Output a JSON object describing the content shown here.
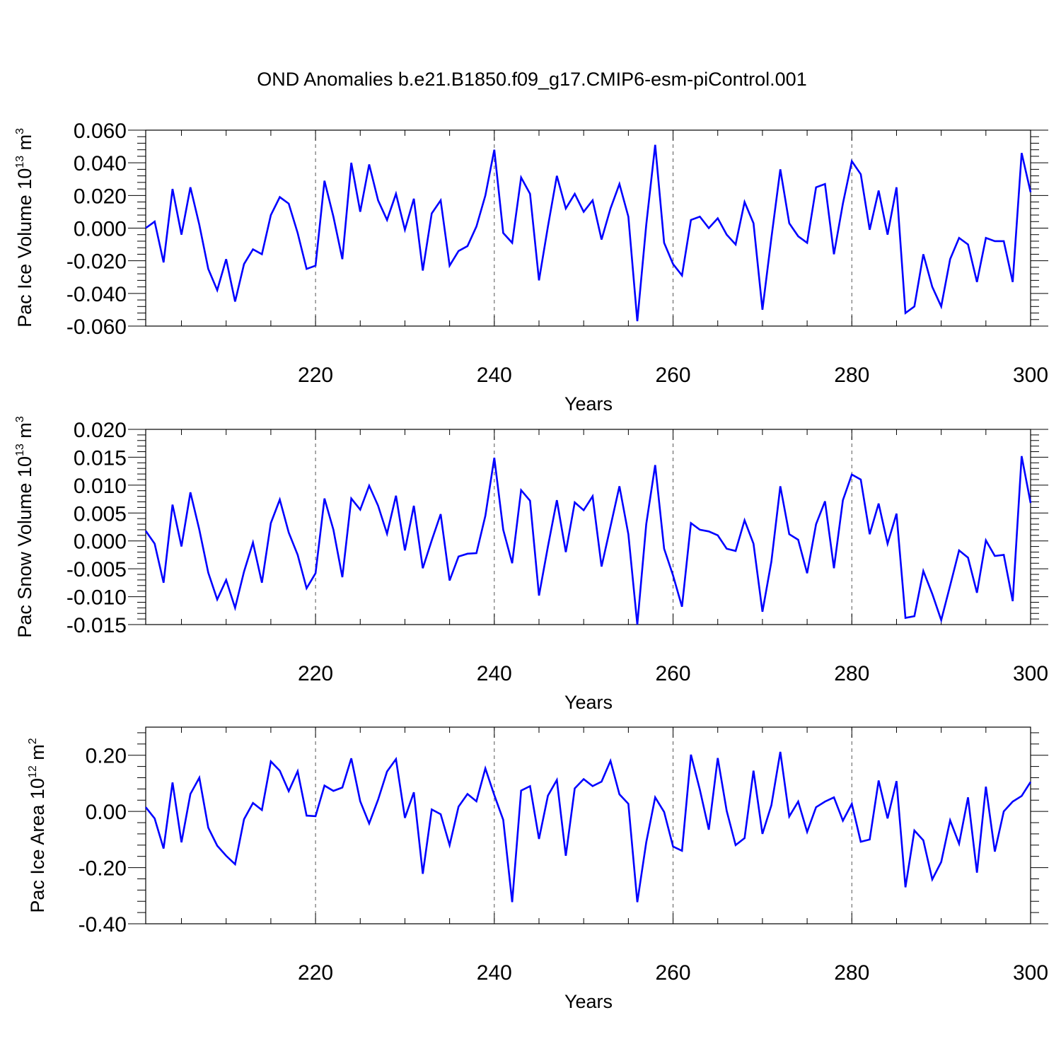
{
  "title": "OND Anomalies b.e21.B1850.f09_g17.CMIP6-esm-piControl.001",
  "colors": {
    "line": "#0000ff",
    "axes": "#000000",
    "grid": "#555555"
  },
  "chart_data": [
    {
      "type": "line",
      "ylabel_parts": [
        "Pac Ice Volume 10",
        "13",
        " m",
        "3"
      ],
      "xlabel": "Years",
      "xlim": [
        201,
        300
      ],
      "ylim": [
        -0.06,
        0.06
      ],
      "xticks": [
        "220",
        "240",
        "260",
        "280",
        "300"
      ],
      "yticks": [
        "-0.060",
        "-0.040",
        "-0.020",
        "0.000",
        "0.020",
        "0.040",
        "0.060"
      ],
      "ytick_values": [
        -0.06,
        -0.04,
        -0.02,
        0.0,
        0.02,
        0.04,
        0.06
      ],
      "x_start": 201,
      "values": [
        0.0,
        0.004,
        -0.021,
        0.024,
        -0.004,
        0.025,
        0.002,
        -0.025,
        -0.038,
        -0.019,
        -0.045,
        -0.022,
        -0.013,
        -0.016,
        0.008,
        0.019,
        0.015,
        -0.003,
        -0.025,
        -0.023,
        0.029,
        0.007,
        -0.019,
        0.04,
        0.01,
        0.039,
        0.017,
        0.005,
        0.021,
        -0.001,
        0.018,
        -0.026,
        0.009,
        0.017,
        -0.023,
        -0.014,
        -0.011,
        0.001,
        0.02,
        0.048,
        -0.003,
        -0.009,
        0.031,
        0.021,
        -0.032,
        0.001,
        0.032,
        0.012,
        0.021,
        0.01,
        0.017,
        -0.007,
        0.012,
        0.027,
        0.007,
        -0.057,
        0.002,
        0.051,
        -0.009,
        -0.022,
        -0.029,
        0.005,
        0.007,
        0.0,
        0.006,
        -0.004,
        -0.01,
        0.016,
        0.003,
        -0.05,
        -0.006,
        0.036,
        0.003,
        -0.005,
        -0.009,
        0.025,
        0.027,
        -0.016,
        0.015,
        0.041,
        0.033,
        -0.001,
        0.023,
        -0.004,
        0.025,
        -0.052,
        -0.048,
        -0.016,
        -0.036,
        -0.048,
        -0.019,
        -0.006,
        -0.01,
        -0.033,
        -0.006,
        -0.008,
        -0.008,
        -0.033,
        0.046,
        0.022
      ]
    },
    {
      "type": "line",
      "ylabel_parts": [
        "Pac Snow Volume 10",
        "13",
        " m",
        "3"
      ],
      "xlabel": "Years",
      "xlim": [
        201,
        300
      ],
      "ylim": [
        -0.015,
        0.02
      ],
      "xticks": [
        "220",
        "240",
        "260",
        "280",
        "300"
      ],
      "yticks": [
        "-0.015",
        "-0.010",
        "-0.005",
        "0.000",
        "0.005",
        "0.010",
        "0.015",
        "0.020"
      ],
      "ytick_values": [
        -0.015,
        -0.01,
        -0.005,
        0.0,
        0.005,
        0.01,
        0.015,
        0.02
      ],
      "x_start": 201,
      "values": [
        0.0018,
        -0.0005,
        -0.0075,
        0.0065,
        -0.001,
        0.0087,
        0.002,
        -0.0057,
        -0.0105,
        -0.007,
        -0.012,
        -0.0055,
        -0.0003,
        -0.0075,
        0.0032,
        0.0074,
        0.0015,
        -0.0025,
        -0.0085,
        -0.0058,
        0.0076,
        0.002,
        -0.0065,
        0.0076,
        0.0056,
        0.0099,
        0.0063,
        0.0013,
        0.0081,
        -0.0017,
        0.0063,
        -0.0049,
        0.0001,
        0.0048,
        -0.0071,
        -0.0028,
        -0.0023,
        -0.0022,
        0.0045,
        0.0149,
        0.002,
        -0.004,
        0.0091,
        0.0072,
        -0.0098,
        -0.001,
        0.0073,
        -0.002,
        0.0069,
        0.0055,
        0.008,
        -0.0046,
        0.0026,
        0.0098,
        0.0012,
        -0.015,
        0.003,
        0.0136,
        -0.0014,
        -0.0062,
        -0.0118,
        0.0032,
        0.002,
        0.0017,
        0.001,
        -0.0014,
        -0.0018,
        0.0037,
        -0.0005,
        -0.0127,
        -0.0037,
        0.0098,
        0.0012,
        0.0002,
        -0.0058,
        0.003,
        0.0071,
        -0.0049,
        0.0073,
        0.0119,
        0.011,
        0.0012,
        0.0067,
        -0.0005,
        0.0049,
        -0.0138,
        -0.0135,
        -0.0054,
        -0.0095,
        -0.0142,
        -0.008,
        -0.0017,
        -0.003,
        -0.0093,
        0.0001,
        -0.0027,
        -0.0025,
        -0.0108,
        0.0152,
        0.0068
      ]
    },
    {
      "type": "line",
      "ylabel_parts": [
        "Pac Ice Area 10",
        "12",
        " m",
        "2"
      ],
      "xlabel": "Years",
      "xlim": [
        201,
        300
      ],
      "ylim": [
        -0.4,
        0.3
      ],
      "xticks": [
        "220",
        "240",
        "260",
        "280",
        "300"
      ],
      "yticks": [
        "-0.40",
        "-0.20",
        "0.00",
        "0.20"
      ],
      "ytick_values": [
        -0.4,
        -0.2,
        0.0,
        0.2
      ],
      "x_start": 201,
      "values": [
        0.015,
        -0.025,
        -0.132,
        0.103,
        -0.11,
        0.062,
        0.12,
        -0.058,
        -0.122,
        -0.158,
        -0.188,
        -0.028,
        0.03,
        0.005,
        0.178,
        0.145,
        0.072,
        0.143,
        -0.015,
        -0.017,
        0.092,
        0.073,
        0.085,
        0.189,
        0.036,
        -0.043,
        0.042,
        0.142,
        0.186,
        -0.023,
        0.068,
        -0.222,
        0.007,
        -0.01,
        -0.12,
        0.017,
        0.062,
        0.036,
        0.153,
        0.058,
        -0.03,
        -0.323,
        0.074,
        0.09,
        -0.098,
        0.056,
        0.112,
        -0.158,
        0.082,
        0.115,
        0.09,
        0.106,
        0.18,
        0.061,
        0.027,
        -0.323,
        -0.11,
        0.05,
        -0.002,
        -0.125,
        -0.14,
        0.202,
        0.077,
        -0.065,
        0.19,
        0.002,
        -0.12,
        -0.095,
        0.145,
        -0.08,
        0.022,
        0.212,
        -0.018,
        0.035,
        -0.073,
        0.015,
        0.035,
        0.05,
        -0.033,
        0.027,
        -0.108,
        -0.1,
        0.11,
        -0.025,
        0.108,
        -0.27,
        -0.068,
        -0.103,
        -0.242,
        -0.18,
        -0.032,
        -0.115,
        0.05,
        -0.218,
        0.088,
        -0.143,
        0.0,
        0.035,
        0.055,
        0.105
      ]
    }
  ]
}
